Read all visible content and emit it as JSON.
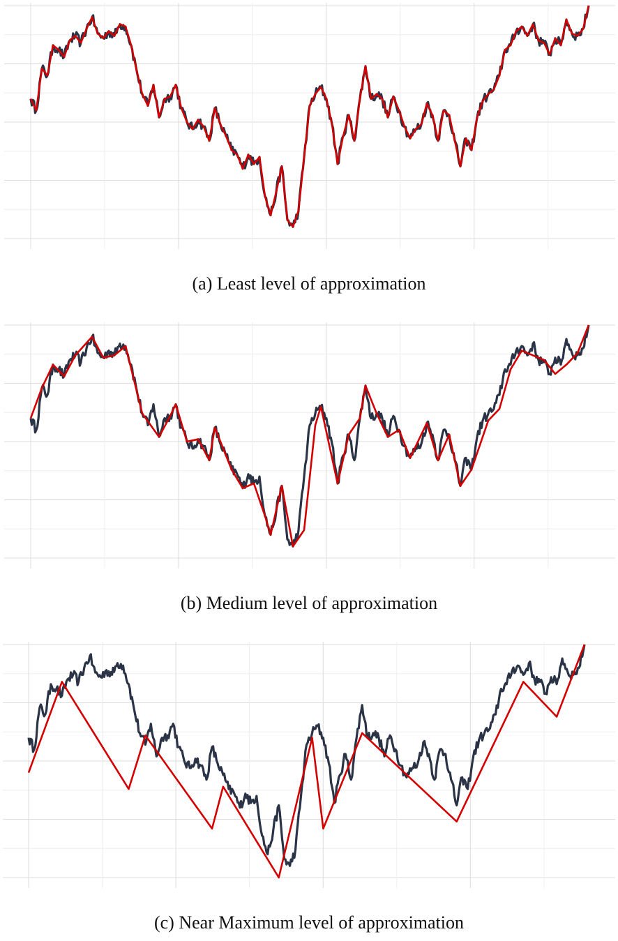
{
  "colors": {
    "original_series": "#2a3446",
    "approximation": "#d40000",
    "grid_major": "#dcdcdc",
    "grid_minor": "#eeeeee"
  },
  "chart_data": [
    {
      "type": "line",
      "caption": "(a) Least level of approximation",
      "grid": true,
      "axis_tick_labels": false,
      "series": [
        {
          "role": "original",
          "x": [
            0,
            1,
            2,
            3,
            4,
            5,
            6,
            7,
            8,
            9,
            10,
            11,
            12,
            13,
            14,
            15,
            16,
            17,
            18,
            19,
            20,
            21,
            22,
            23,
            24,
            25,
            26,
            27,
            28,
            29,
            30,
            31,
            32,
            33,
            34,
            35,
            36,
            37,
            38,
            39,
            40,
            41,
            42,
            43,
            44,
            45,
            46,
            47,
            48,
            49,
            50,
            51,
            52,
            53,
            54,
            55,
            56,
            57,
            58,
            59,
            60,
            61,
            62,
            63,
            64,
            65,
            66,
            67,
            68,
            69,
            70,
            71,
            72,
            73,
            74,
            75,
            76,
            77,
            78,
            79,
            80,
            81,
            82,
            83,
            84,
            85,
            86,
            87,
            88,
            89,
            90,
            91,
            92,
            93,
            94,
            95,
            96,
            97,
            98,
            99,
            100
          ],
          "y": [
            0.6,
            0.55,
            0.73,
            0.7,
            0.83,
            0.81,
            0.78,
            0.85,
            0.87,
            0.84,
            0.9,
            0.95,
            0.88,
            0.86,
            0.89,
            0.87,
            0.92,
            0.91,
            0.83,
            0.72,
            0.62,
            0.57,
            0.66,
            0.52,
            0.6,
            0.61,
            0.66,
            0.56,
            0.5,
            0.47,
            0.51,
            0.48,
            0.42,
            0.56,
            0.49,
            0.44,
            0.38,
            0.36,
            0.3,
            0.36,
            0.32,
            0.35,
            0.18,
            0.1,
            0.2,
            0.31,
            0.08,
            0.05,
            0.12,
            0.35,
            0.57,
            0.62,
            0.65,
            0.6,
            0.49,
            0.32,
            0.44,
            0.53,
            0.42,
            0.6,
            0.74,
            0.6,
            0.62,
            0.6,
            0.52,
            0.61,
            0.55,
            0.48,
            0.43,
            0.47,
            0.49,
            0.58,
            0.53,
            0.42,
            0.55,
            0.53,
            0.42,
            0.31,
            0.43,
            0.38,
            0.52,
            0.59,
            0.62,
            0.64,
            0.7,
            0.81,
            0.83,
            0.89,
            0.91,
            0.87,
            0.92,
            0.85,
            0.84,
            0.79,
            0.86,
            0.83,
            0.94,
            0.88,
            0.87,
            0.9,
            1.0
          ]
        },
        {
          "role": "approximation",
          "x": [
            0,
            1,
            2,
            3,
            4,
            5,
            6,
            7,
            8,
            9,
            10,
            11,
            12,
            13,
            14,
            15,
            16,
            17,
            18,
            19,
            20,
            21,
            22,
            23,
            24,
            25,
            26,
            27,
            28,
            29,
            30,
            31,
            32,
            33,
            34,
            35,
            36,
            37,
            38,
            39,
            40,
            41,
            42,
            43,
            44,
            45,
            46,
            47,
            48,
            49,
            50,
            51,
            52,
            53,
            54,
            55,
            56,
            57,
            58,
            59,
            60,
            61,
            62,
            63,
            64,
            65,
            66,
            67,
            68,
            69,
            70,
            71,
            72,
            73,
            74,
            75,
            76,
            77,
            78,
            79,
            80,
            81,
            82,
            83,
            84,
            85,
            86,
            87,
            88,
            89,
            90,
            91,
            92,
            93,
            94,
            95,
            96,
            97,
            98,
            99,
            100
          ],
          "y": [
            0.6,
            0.55,
            0.73,
            0.7,
            0.83,
            0.81,
            0.78,
            0.85,
            0.87,
            0.84,
            0.9,
            0.95,
            0.88,
            0.86,
            0.89,
            0.87,
            0.92,
            0.91,
            0.83,
            0.72,
            0.62,
            0.57,
            0.66,
            0.52,
            0.6,
            0.61,
            0.66,
            0.56,
            0.5,
            0.47,
            0.51,
            0.48,
            0.42,
            0.56,
            0.49,
            0.44,
            0.38,
            0.36,
            0.3,
            0.36,
            0.32,
            0.35,
            0.18,
            0.1,
            0.2,
            0.31,
            0.08,
            0.05,
            0.12,
            0.35,
            0.57,
            0.62,
            0.65,
            0.6,
            0.49,
            0.32,
            0.44,
            0.53,
            0.42,
            0.6,
            0.74,
            0.6,
            0.62,
            0.6,
            0.52,
            0.61,
            0.55,
            0.48,
            0.43,
            0.47,
            0.49,
            0.58,
            0.53,
            0.42,
            0.55,
            0.53,
            0.42,
            0.31,
            0.43,
            0.38,
            0.52,
            0.59,
            0.62,
            0.64,
            0.7,
            0.81,
            0.83,
            0.89,
            0.91,
            0.87,
            0.92,
            0.85,
            0.84,
            0.79,
            0.86,
            0.83,
            0.94,
            0.88,
            0.87,
            0.9,
            1.0
          ]
        }
      ]
    },
    {
      "type": "line",
      "caption": "(b) Medium level of approximation",
      "grid": true,
      "axis_tick_labels": false,
      "series": [
        {
          "role": "original",
          "x": [
            0,
            1,
            2,
            3,
            4,
            5,
            6,
            7,
            8,
            9,
            10,
            11,
            12,
            13,
            14,
            15,
            16,
            17,
            18,
            19,
            20,
            21,
            22,
            23,
            24,
            25,
            26,
            27,
            28,
            29,
            30,
            31,
            32,
            33,
            34,
            35,
            36,
            37,
            38,
            39,
            40,
            41,
            42,
            43,
            44,
            45,
            46,
            47,
            48,
            49,
            50,
            51,
            52,
            53,
            54,
            55,
            56,
            57,
            58,
            59,
            60,
            61,
            62,
            63,
            64,
            65,
            66,
            67,
            68,
            69,
            70,
            71,
            72,
            73,
            74,
            75,
            76,
            77,
            78,
            79,
            80,
            81,
            82,
            83,
            84,
            85,
            86,
            87,
            88,
            89,
            90,
            91,
            92,
            93,
            94,
            95,
            96,
            97,
            98,
            99,
            100
          ],
          "y": [
            0.6,
            0.55,
            0.73,
            0.7,
            0.83,
            0.81,
            0.78,
            0.85,
            0.87,
            0.84,
            0.9,
            0.95,
            0.88,
            0.86,
            0.89,
            0.87,
            0.92,
            0.91,
            0.83,
            0.72,
            0.62,
            0.57,
            0.66,
            0.52,
            0.6,
            0.61,
            0.66,
            0.56,
            0.5,
            0.47,
            0.51,
            0.48,
            0.42,
            0.56,
            0.49,
            0.44,
            0.38,
            0.36,
            0.3,
            0.36,
            0.32,
            0.35,
            0.18,
            0.1,
            0.2,
            0.31,
            0.08,
            0.05,
            0.12,
            0.35,
            0.57,
            0.62,
            0.65,
            0.6,
            0.49,
            0.32,
            0.44,
            0.53,
            0.42,
            0.6,
            0.74,
            0.6,
            0.62,
            0.6,
            0.52,
            0.61,
            0.55,
            0.48,
            0.43,
            0.47,
            0.49,
            0.58,
            0.53,
            0.42,
            0.55,
            0.53,
            0.42,
            0.31,
            0.43,
            0.38,
            0.52,
            0.59,
            0.62,
            0.64,
            0.7,
            0.81,
            0.83,
            0.89,
            0.91,
            0.87,
            0.92,
            0.85,
            0.84,
            0.79,
            0.86,
            0.83,
            0.94,
            0.88,
            0.87,
            0.9,
            1.0
          ]
        },
        {
          "role": "approximation",
          "x": [
            0,
            2,
            4,
            6,
            8,
            11,
            13,
            15,
            17,
            20,
            23,
            25,
            26,
            28,
            30,
            32,
            33,
            36,
            38,
            40,
            42,
            43,
            45,
            47,
            49,
            51,
            52,
            55,
            57,
            59,
            60,
            62,
            64,
            66,
            68,
            71,
            73,
            75,
            77,
            79,
            82,
            84,
            86,
            88,
            90,
            92,
            94,
            96,
            98,
            100
          ],
          "y": [
            0.6,
            0.73,
            0.83,
            0.78,
            0.87,
            0.95,
            0.86,
            0.87,
            0.91,
            0.62,
            0.52,
            0.61,
            0.66,
            0.5,
            0.51,
            0.42,
            0.56,
            0.38,
            0.3,
            0.32,
            0.18,
            0.1,
            0.31,
            0.05,
            0.12,
            0.57,
            0.65,
            0.32,
            0.53,
            0.6,
            0.74,
            0.62,
            0.52,
            0.55,
            0.43,
            0.58,
            0.42,
            0.53,
            0.31,
            0.38,
            0.59,
            0.64,
            0.81,
            0.89,
            0.87,
            0.85,
            0.79,
            0.83,
            0.88,
            1.0
          ]
        }
      ]
    },
    {
      "type": "line",
      "caption": "(c) Near Maximum level of approximation",
      "grid": true,
      "axis_tick_labels": false,
      "series": [
        {
          "role": "original",
          "x": [
            0,
            1,
            2,
            3,
            4,
            5,
            6,
            7,
            8,
            9,
            10,
            11,
            12,
            13,
            14,
            15,
            16,
            17,
            18,
            19,
            20,
            21,
            22,
            23,
            24,
            25,
            26,
            27,
            28,
            29,
            30,
            31,
            32,
            33,
            34,
            35,
            36,
            37,
            38,
            39,
            40,
            41,
            42,
            43,
            44,
            45,
            46,
            47,
            48,
            49,
            50,
            51,
            52,
            53,
            54,
            55,
            56,
            57,
            58,
            59,
            60,
            61,
            62,
            63,
            64,
            65,
            66,
            67,
            68,
            69,
            70,
            71,
            72,
            73,
            74,
            75,
            76,
            77,
            78,
            79,
            80,
            81,
            82,
            83,
            84,
            85,
            86,
            87,
            88,
            89,
            90,
            91,
            92,
            93,
            94,
            95,
            96,
            97,
            98,
            99,
            100
          ],
          "y": [
            0.6,
            0.55,
            0.73,
            0.7,
            0.83,
            0.81,
            0.78,
            0.85,
            0.87,
            0.84,
            0.9,
            0.95,
            0.88,
            0.86,
            0.89,
            0.87,
            0.92,
            0.91,
            0.83,
            0.72,
            0.62,
            0.57,
            0.66,
            0.52,
            0.6,
            0.61,
            0.66,
            0.56,
            0.5,
            0.47,
            0.51,
            0.48,
            0.42,
            0.56,
            0.49,
            0.44,
            0.38,
            0.36,
            0.3,
            0.36,
            0.32,
            0.35,
            0.18,
            0.1,
            0.2,
            0.31,
            0.08,
            0.05,
            0.12,
            0.35,
            0.57,
            0.62,
            0.65,
            0.6,
            0.49,
            0.32,
            0.44,
            0.53,
            0.42,
            0.6,
            0.74,
            0.6,
            0.62,
            0.6,
            0.52,
            0.61,
            0.55,
            0.48,
            0.43,
            0.47,
            0.49,
            0.58,
            0.53,
            0.42,
            0.55,
            0.53,
            0.42,
            0.31,
            0.43,
            0.38,
            0.52,
            0.59,
            0.62,
            0.64,
            0.7,
            0.81,
            0.83,
            0.89,
            0.91,
            0.87,
            0.92,
            0.85,
            0.84,
            0.79,
            0.86,
            0.83,
            0.94,
            0.88,
            0.87,
            0.9,
            1.0
          ]
        },
        {
          "role": "approximation",
          "x": [
            0,
            6,
            18,
            21,
            33,
            35,
            45,
            51,
            53,
            60,
            77,
            89,
            95,
            100
          ],
          "y": [
            0.45,
            0.84,
            0.38,
            0.61,
            0.21,
            0.39,
            0.0,
            0.6,
            0.21,
            0.62,
            0.24,
            0.84,
            0.69,
            1.0
          ]
        }
      ]
    }
  ]
}
